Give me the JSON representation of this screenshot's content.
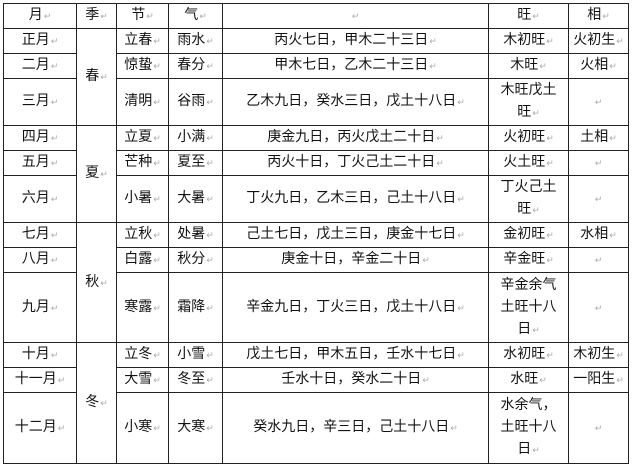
{
  "header": {
    "month": "月",
    "season": "季",
    "jie": "节",
    "qi": "气",
    "days": "",
    "wang": "旺",
    "xiang": "相"
  },
  "seasons": [
    "春",
    "夏",
    "秋",
    "冬"
  ],
  "rows": [
    {
      "month": "正月",
      "jie": "立春",
      "qi": "雨水",
      "days": "丙火七日，甲木二十三日",
      "wang": "木初旺",
      "xiang": "火初生"
    },
    {
      "month": "二月",
      "jie": "惊蛰",
      "qi": "春分",
      "days": "甲木七日，乙木二十三日",
      "wang": "木旺",
      "xiang": "火相"
    },
    {
      "month": "三月",
      "jie": "清明",
      "qi": "谷雨",
      "days": "乙木九日，癸水三日，戊土十八日",
      "wang": "木旺戊土旺",
      "xiang": ""
    },
    {
      "month": "四月",
      "jie": "立夏",
      "qi": "小满",
      "days": "庚金九日，丙火戊土二十日",
      "wang": "火初旺",
      "xiang": "土相"
    },
    {
      "month": "五月",
      "jie": "芒种",
      "qi": "夏至",
      "days": "丙火十日，丁火己土二十日",
      "wang": "火土旺",
      "xiang": ""
    },
    {
      "month": "六月",
      "jie": "小暑",
      "qi": "大暑",
      "days": "丁火九日，乙木三日，己土十八日",
      "wang": "丁火己土旺",
      "xiang": ""
    },
    {
      "month": "七月",
      "jie": "立秋",
      "qi": "处暑",
      "days": "己土七日，戊土三日，庚金十七日",
      "wang": "金初旺",
      "xiang": "水相"
    },
    {
      "month": "八月",
      "jie": "白露",
      "qi": "秋分",
      "days": "庚金十日，辛金二十日",
      "wang": "辛金旺",
      "xiang": ""
    },
    {
      "month": "九月",
      "jie": "寒露",
      "qi": "霜降",
      "days": "辛金九日，丁火三日，戊土十八日",
      "wang": "辛金余气土旺十八日",
      "xiang": ""
    },
    {
      "month": "十月",
      "jie": "立冬",
      "qi": "小雪",
      "days": "戊土七日，甲木五日，壬水十七日",
      "wang": "水初旺",
      "xiang": "木初生"
    },
    {
      "month": "十一月",
      "jie": "大雪",
      "qi": "冬至",
      "days": "壬水十日，癸水二十日",
      "wang": "水旺",
      "xiang": "一阳生"
    },
    {
      "month": "十二月",
      "jie": "小寒",
      "qi": "大寒",
      "days": "癸水九日，辛三日，己土十八日",
      "wang": "水余气，土旺十八日",
      "xiang": ""
    }
  ]
}
